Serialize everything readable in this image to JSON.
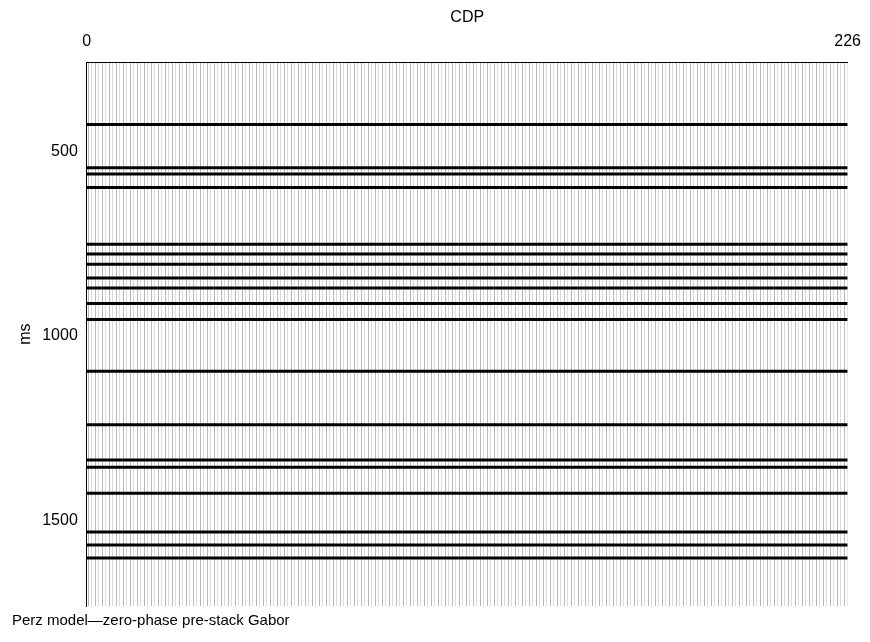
{
  "chart_data": {
    "type": "line",
    "title": "Perz model—zero-phase pre-stack Gabor",
    "x_label": "CDP",
    "y_label": "ms",
    "xlim": [
      0,
      226
    ],
    "xticks": [
      0,
      226
    ],
    "ylim": [
      260,
      1730
    ],
    "yticks": [
      500,
      1000,
      1500
    ],
    "grid": false,
    "color": "#000000",
    "reflector_times": [
      428,
      545,
      562,
      598,
      752,
      778,
      806,
      843,
      870,
      912,
      955,
      1095,
      1240,
      1335,
      1355,
      1425,
      1530,
      1565,
      1600
    ]
  }
}
